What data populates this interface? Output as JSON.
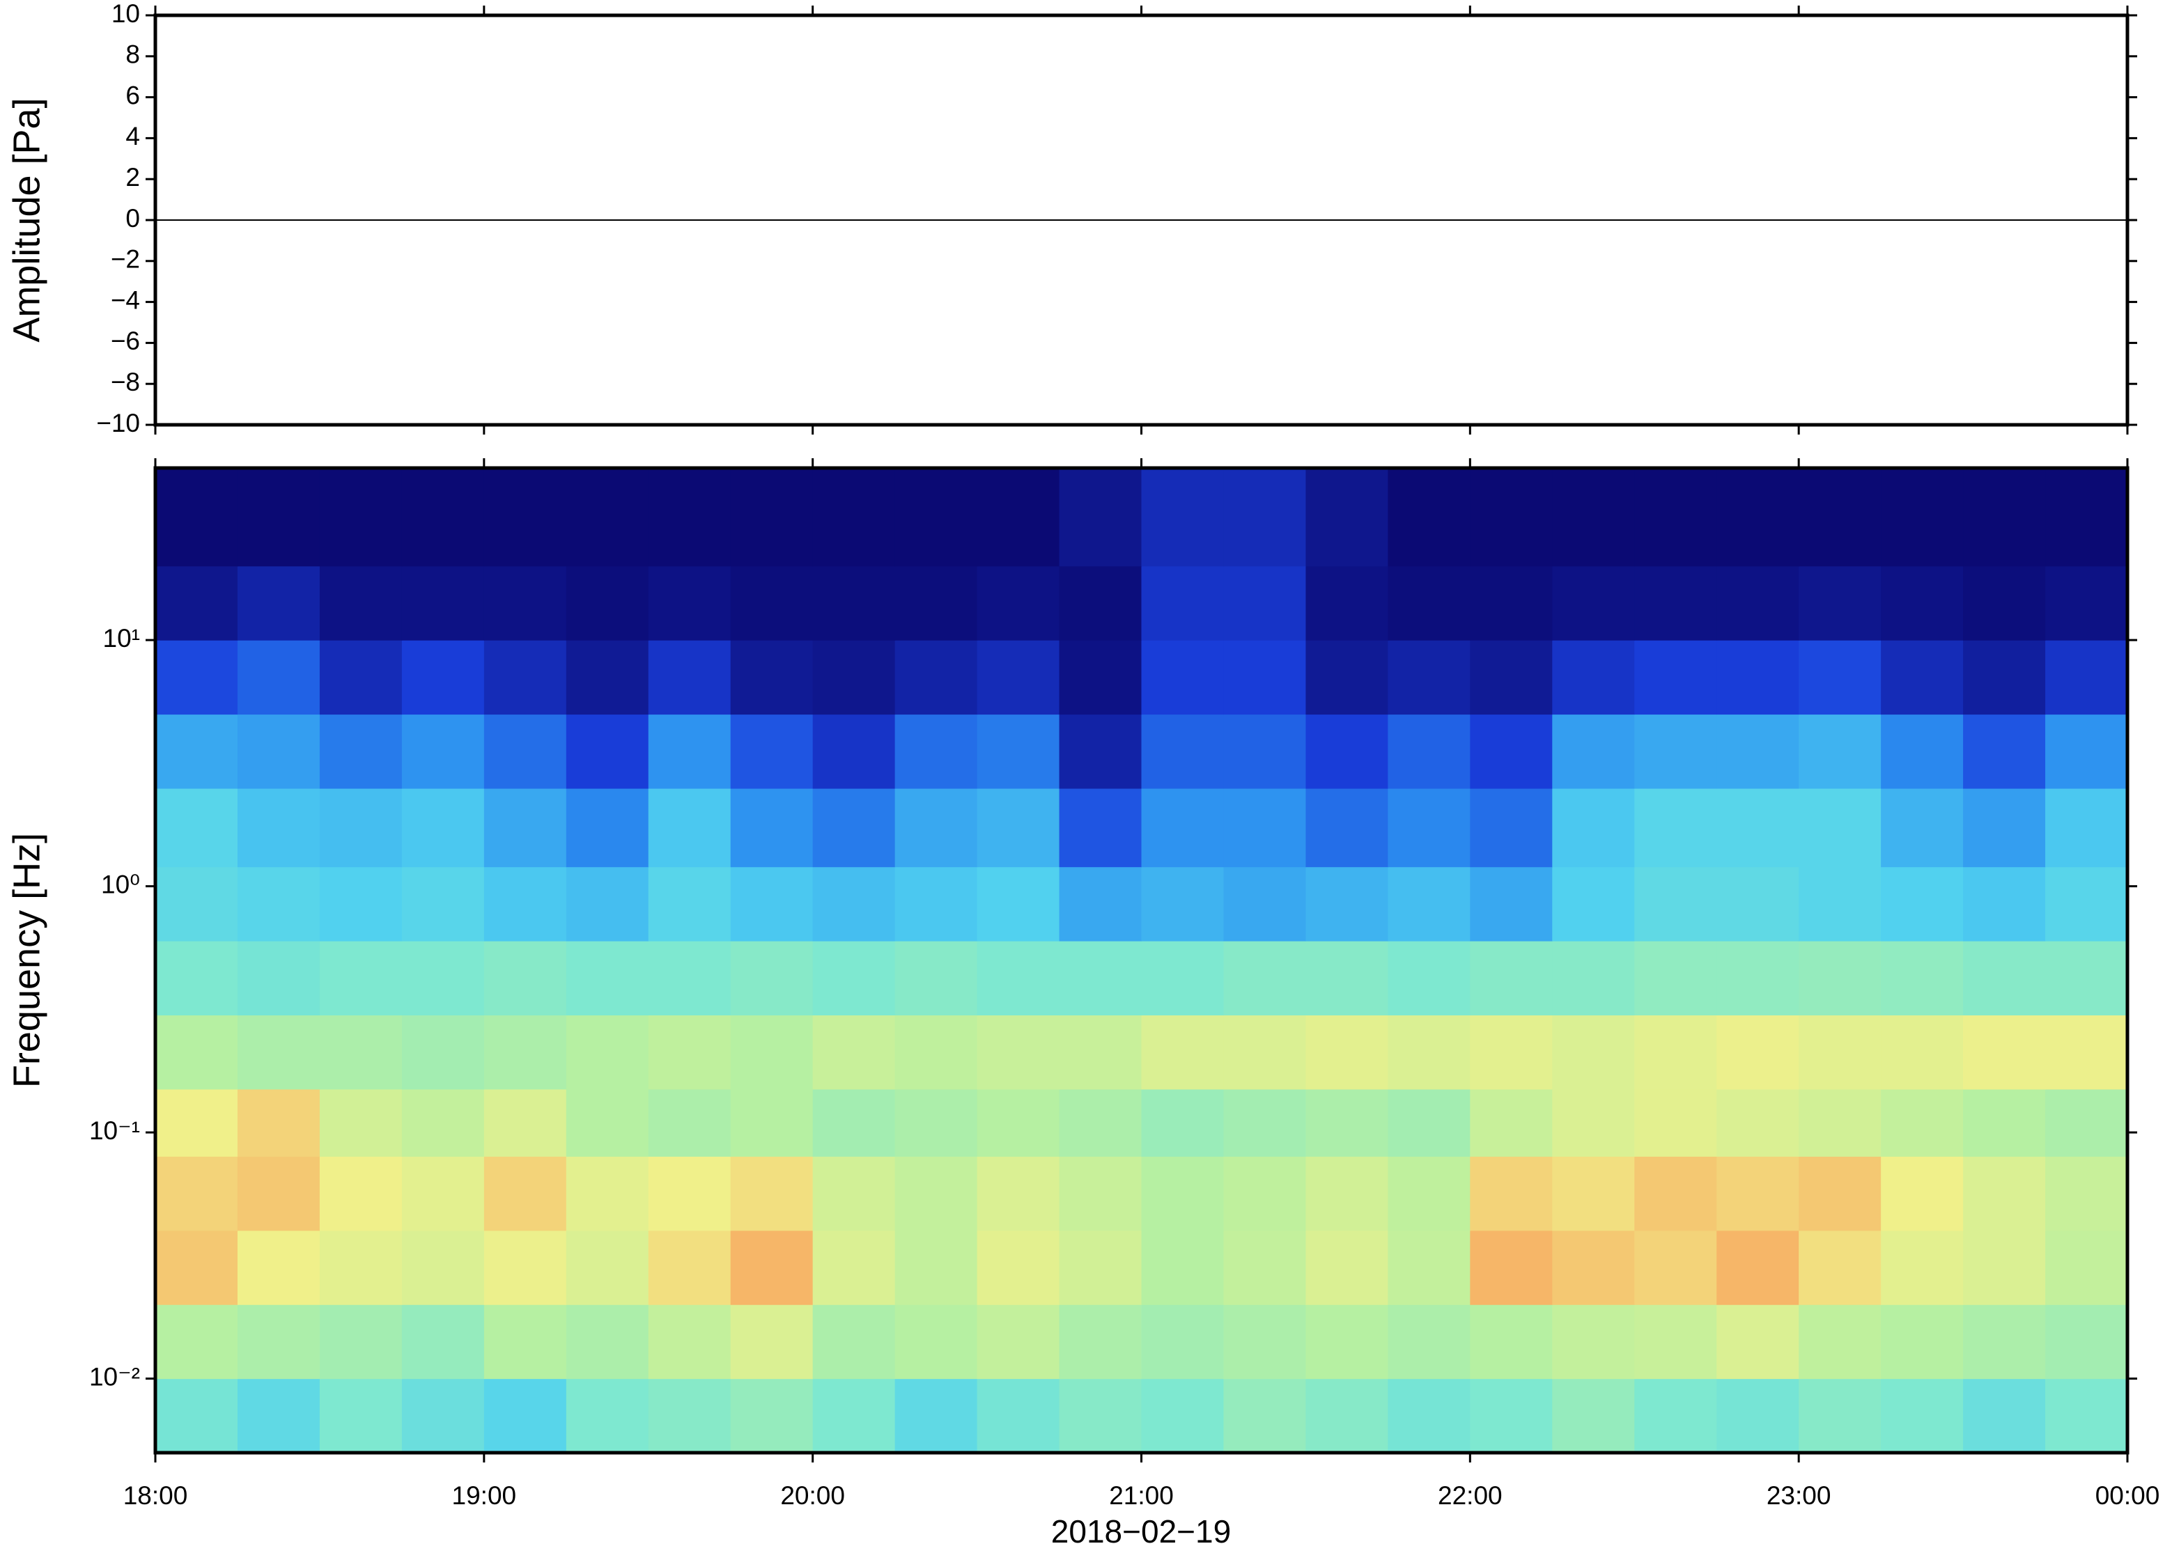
{
  "chart_data": [
    {
      "type": "line",
      "ylabel": "Amplitude [Pa]",
      "color": "#000000",
      "x": [
        18,
        18.25,
        18.5,
        18.75,
        19,
        19.25,
        19.5,
        19.75,
        20,
        20.25,
        20.5,
        20.75,
        21,
        21.25,
        21.5,
        21.75,
        22,
        22.25,
        22.5,
        22.75,
        23,
        23.25,
        23.5,
        23.75,
        24
      ],
      "values": [
        0,
        0,
        0,
        0,
        0,
        0,
        0,
        0,
        0,
        0,
        0,
        0,
        0,
        0,
        0,
        0,
        0,
        0,
        0,
        0,
        0,
        0,
        0,
        0,
        0
      ],
      "xlim": [
        18,
        24
      ],
      "xticks": [
        18,
        19,
        20,
        21,
        22,
        23,
        24
      ],
      "ylim": [
        -10,
        10
      ],
      "yticks": [
        {
          "value": -10,
          "label": "−10"
        },
        {
          "value": -8,
          "label": "−8"
        },
        {
          "value": -6,
          "label": "−6"
        },
        {
          "value": -4,
          "label": "−4"
        },
        {
          "value": -2,
          "label": "−2"
        },
        0,
        2,
        4,
        6,
        8,
        10
      ]
    },
    {
      "type": "heatmap",
      "ylabel": "Frequency [Hz]",
      "xlabel": "2018−02−19",
      "ylog": true,
      "xlim": [
        18,
        24
      ],
      "xticks": [
        {
          "value": 18,
          "label": "18:00"
        },
        {
          "value": 19,
          "label": "19:00"
        },
        {
          "value": 20,
          "label": "20:00"
        },
        {
          "value": 21,
          "label": "21:00"
        },
        {
          "value": 22,
          "label": "22:00"
        },
        {
          "value": 23,
          "label": "23:00"
        },
        {
          "value": 24,
          "label": "00:00"
        }
      ],
      "ylim": [
        0.005,
        50
      ],
      "yticks": [
        {
          "value": 0.01,
          "label": "10⁻²"
        },
        {
          "value": 0.1,
          "label": "10⁻¹"
        },
        {
          "value": 1,
          "label": "10⁰"
        },
        {
          "value": 10,
          "label": "10¹"
        }
      ],
      "x_bins": [
        18,
        18.25,
        18.5,
        18.75,
        19,
        19.25,
        19.5,
        19.75,
        20,
        20.25,
        20.5,
        20.75,
        21,
        21.25,
        21.5,
        21.75,
        22,
        22.25,
        22.5,
        22.75,
        23,
        23.25,
        23.5,
        23.75,
        24
      ],
      "y_bins": [
        0.005,
        0.01,
        0.02,
        0.04,
        0.08,
        0.15,
        0.3,
        0.6,
        1.2,
        2.5,
        5,
        10,
        20,
        50
      ],
      "zlim": [
        0,
        1
      ],
      "colorscale": [
        "#0b0a74",
        "#1a3fdc",
        "#2b8ef0",
        "#4fd0f0",
        "#7ee8d0",
        "#b8f0a0",
        "#f0f08a",
        "#f8a860",
        "#f05040"
      ],
      "z": [
        [
          0.48,
          0.42,
          0.5,
          0.45,
          0.4,
          0.5,
          0.52,
          0.55,
          0.5,
          0.42,
          0.48,
          0.52,
          0.5,
          0.55,
          0.52,
          0.48,
          0.5,
          0.55,
          0.5,
          0.48,
          0.52,
          0.5,
          0.45,
          0.5
        ],
        [
          0.62,
          0.6,
          0.58,
          0.55,
          0.62,
          0.6,
          0.65,
          0.7,
          0.6,
          0.62,
          0.65,
          0.6,
          0.58,
          0.6,
          0.62,
          0.6,
          0.62,
          0.65,
          0.66,
          0.7,
          0.64,
          0.62,
          0.6,
          0.58
        ],
        [
          0.82,
          0.75,
          0.72,
          0.7,
          0.74,
          0.7,
          0.78,
          0.85,
          0.7,
          0.65,
          0.72,
          0.68,
          0.62,
          0.65,
          0.7,
          0.65,
          0.85,
          0.82,
          0.8,
          0.85,
          0.78,
          0.72,
          0.7,
          0.65
        ],
        [
          0.8,
          0.82,
          0.75,
          0.72,
          0.8,
          0.72,
          0.75,
          0.78,
          0.68,
          0.65,
          0.7,
          0.66,
          0.62,
          0.64,
          0.68,
          0.64,
          0.8,
          0.78,
          0.82,
          0.8,
          0.82,
          0.75,
          0.7,
          0.66
        ],
        [
          0.75,
          0.8,
          0.68,
          0.65,
          0.7,
          0.62,
          0.6,
          0.62,
          0.58,
          0.6,
          0.62,
          0.6,
          0.56,
          0.58,
          0.6,
          0.58,
          0.66,
          0.7,
          0.72,
          0.7,
          0.68,
          0.65,
          0.62,
          0.6
        ],
        [
          0.62,
          0.6,
          0.6,
          0.58,
          0.6,
          0.62,
          0.64,
          0.62,
          0.66,
          0.64,
          0.66,
          0.66,
          0.7,
          0.7,
          0.72,
          0.7,
          0.72,
          0.7,
          0.72,
          0.74,
          0.72,
          0.72,
          0.74,
          0.74
        ],
        [
          0.5,
          0.48,
          0.5,
          0.5,
          0.52,
          0.5,
          0.5,
          0.52,
          0.5,
          0.52,
          0.5,
          0.5,
          0.5,
          0.52,
          0.52,
          0.5,
          0.52,
          0.52,
          0.54,
          0.54,
          0.55,
          0.54,
          0.52,
          0.52
        ],
        [
          0.42,
          0.4,
          0.38,
          0.4,
          0.36,
          0.34,
          0.4,
          0.36,
          0.34,
          0.36,
          0.38,
          0.3,
          0.32,
          0.3,
          0.32,
          0.34,
          0.3,
          0.38,
          0.42,
          0.42,
          0.4,
          0.38,
          0.36,
          0.4
        ],
        [
          0.4,
          0.35,
          0.34,
          0.36,
          0.3,
          0.24,
          0.36,
          0.26,
          0.22,
          0.3,
          0.32,
          0.16,
          0.26,
          0.26,
          0.2,
          0.24,
          0.2,
          0.36,
          0.4,
          0.4,
          0.4,
          0.32,
          0.28,
          0.36
        ],
        [
          0.3,
          0.28,
          0.22,
          0.26,
          0.2,
          0.12,
          0.26,
          0.16,
          0.1,
          0.2,
          0.22,
          0.06,
          0.18,
          0.18,
          0.12,
          0.18,
          0.12,
          0.28,
          0.3,
          0.3,
          0.32,
          0.24,
          0.16,
          0.26
        ],
        [
          0.14,
          0.18,
          0.08,
          0.12,
          0.08,
          0.04,
          0.1,
          0.04,
          0.03,
          0.06,
          0.08,
          0.02,
          0.12,
          0.12,
          0.04,
          0.06,
          0.04,
          0.1,
          0.12,
          0.12,
          0.14,
          0.08,
          0.05,
          0.1
        ],
        [
          0.03,
          0.06,
          0.02,
          0.02,
          0.02,
          0.01,
          0.02,
          0.01,
          0.01,
          0.01,
          0.02,
          0.01,
          0.1,
          0.1,
          0.02,
          0.01,
          0.01,
          0.02,
          0.02,
          0.02,
          0.03,
          0.02,
          0.01,
          0.02
        ],
        [
          0,
          0,
          0,
          0,
          0,
          0,
          0,
          0,
          0,
          0,
          0,
          0.03,
          0.08,
          0.08,
          0.03,
          0,
          0,
          0,
          0,
          0,
          0,
          0,
          0,
          0
        ]
      ]
    }
  ]
}
